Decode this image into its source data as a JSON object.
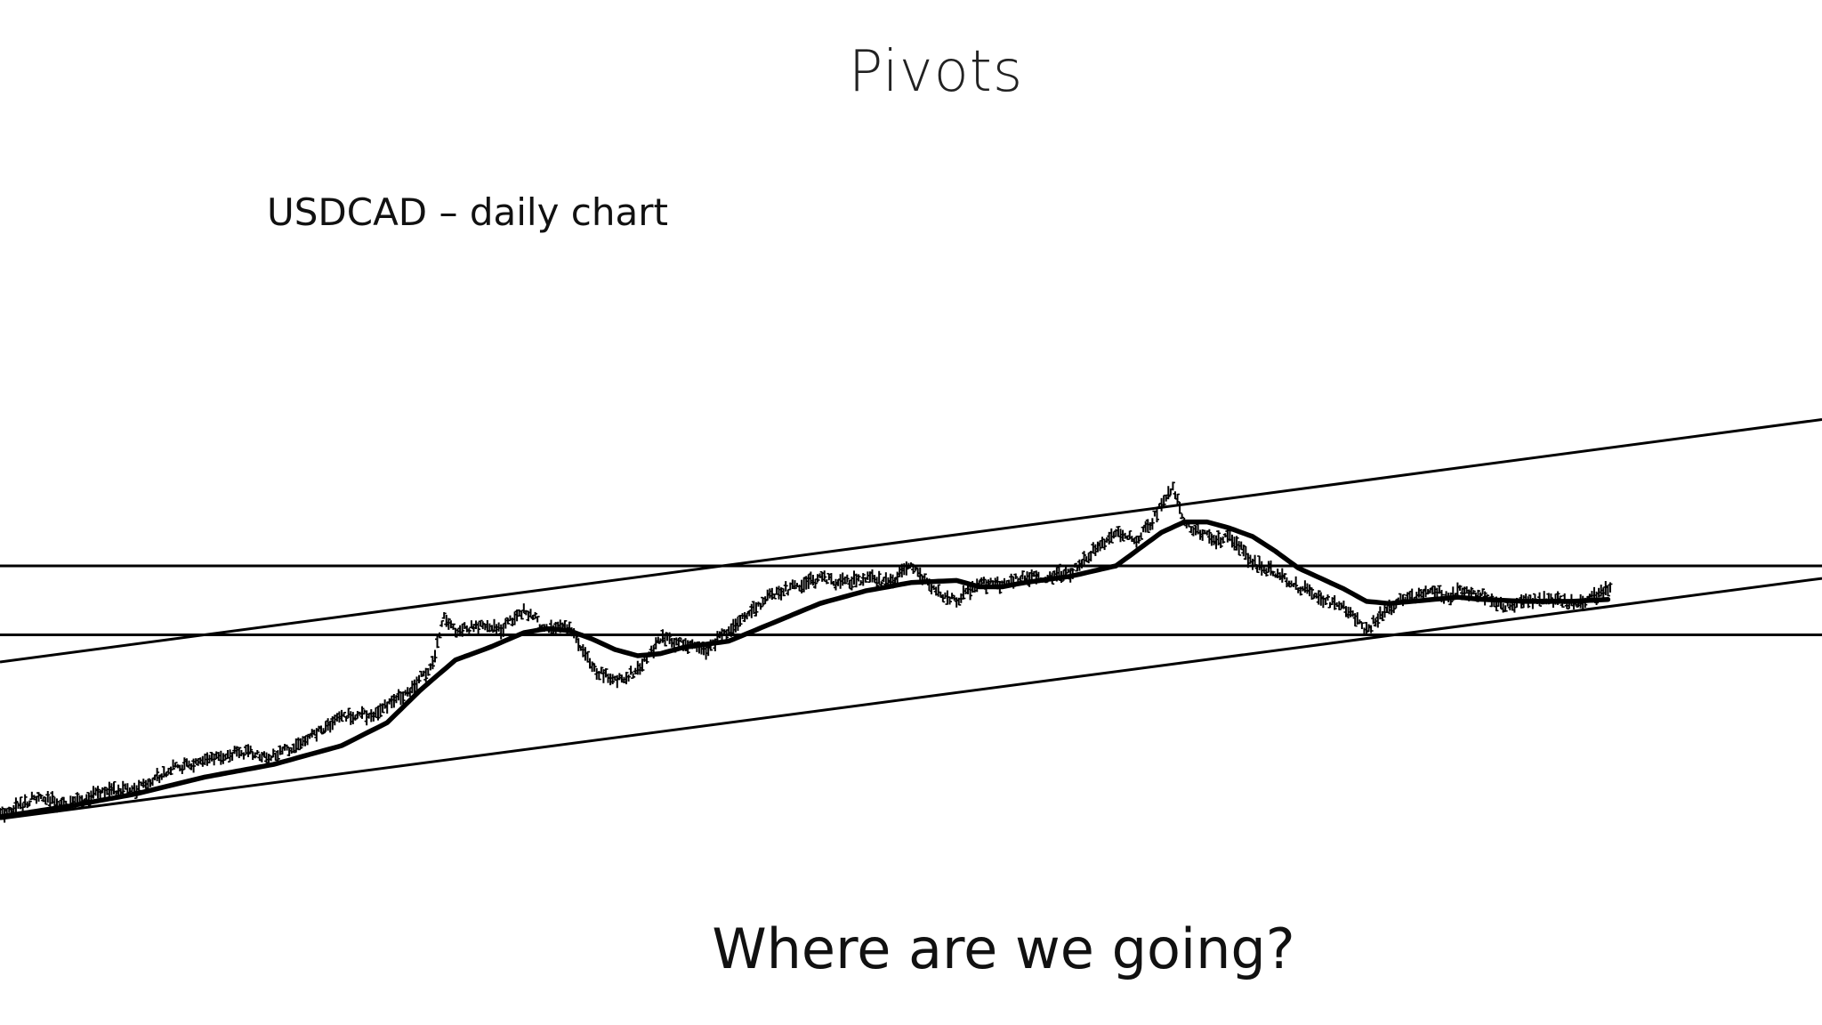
{
  "slide": {
    "title": "Pivots",
    "caption": "USDCAD – daily chart",
    "question": "Where are we going?"
  },
  "chart_data": {
    "type": "line",
    "title": "USDCAD – daily chart",
    "xlabel": "",
    "ylabel": "",
    "grid": false,
    "legend": "none",
    "axes_visible": false,
    "x_unit": "trading-day index",
    "y_unit": "price (unlabeled)",
    "xlim": [
      0,
      1600
    ],
    "ylim": [
      0,
      100
    ],
    "series": [
      {
        "style": "ohlc-bars",
        "color": "#000000",
        "x": [
          0,
          30,
          60,
          90,
          120,
          150,
          180,
          210,
          240,
          270,
          300,
          330,
          360,
          380,
          390,
          400,
          420,
          440,
          460,
          480,
          500,
          520,
          540,
          560,
          580,
          600,
          620,
          640,
          660,
          680,
          700,
          720,
          740,
          760,
          780,
          800,
          820,
          840,
          860,
          880,
          900,
          920,
          940,
          960,
          980,
          1000,
          1010,
          1020,
          1030,
          1040,
          1050,
          1060,
          1070,
          1080,
          1090,
          1100,
          1120,
          1140,
          1160,
          1180,
          1200,
          1220,
          1240,
          1250,
          1260,
          1270,
          1280,
          1300,
          1320,
          1340,
          1360,
          1380,
          1400,
          1415
        ],
        "y": [
          2.0,
          6.0,
          4.5,
          7.5,
          8.0,
          13.0,
          14.5,
          17.0,
          16.0,
          20.0,
          25.5,
          26.0,
          32.0,
          38.0,
          50.0,
          46.0,
          47.0,
          46.5,
          51.0,
          46.5,
          47.0,
          37.0,
          34.0,
          36.5,
          44.0,
          43.0,
          41.5,
          46.0,
          51.0,
          55.0,
          56.5,
          58.5,
          57.5,
          58.5,
          57.5,
          61.5,
          55.5,
          53.0,
          57.5,
          57.0,
          59.0,
          58.5,
          60.0,
          65.0,
          69.0,
          68.0,
          71.5,
          76.0,
          81.0,
          72.0,
          70.0,
          69.0,
          67.5,
          68.5,
          66.0,
          62.0,
          60.0,
          56.5,
          54.0,
          51.5,
          46.0,
          52.0,
          54.0,
          54.5,
          56.0,
          53.5,
          55.5,
          55.0,
          51.5,
          53.0,
          53.5,
          52.5,
          54.0,
          56.0
        ]
      },
      {
        "style": "moving-average",
        "color": "#000000",
        "x": [
          0,
          60,
          120,
          180,
          240,
          300,
          340,
          370,
          400,
          430,
          460,
          480,
          500,
          520,
          540,
          560,
          580,
          600,
          640,
          680,
          720,
          760,
          800,
          840,
          860,
          880,
          900,
          940,
          980,
          1000,
          1020,
          1040,
          1060,
          1080,
          1100,
          1120,
          1140,
          1160,
          1180,
          1200,
          1220,
          1240,
          1260,
          1280,
          1300,
          1340,
          1380,
          1415
        ],
        "y": [
          1.5,
          4.0,
          7.0,
          11.0,
          14.0,
          18.5,
          24.0,
          32.0,
          39.0,
          42.0,
          45.5,
          46.5,
          46.0,
          44.0,
          41.5,
          40.0,
          40.5,
          42.0,
          43.5,
          48.0,
          52.5,
          55.5,
          57.5,
          58.0,
          56.5,
          56.5,
          57.5,
          59.0,
          61.5,
          65.5,
          69.5,
          72.0,
          72.0,
          70.5,
          68.5,
          65.0,
          61.0,
          58.5,
          56.0,
          53.0,
          52.5,
          53.0,
          53.5,
          54.0,
          53.5,
          53.0,
          53.0,
          53.5
        ]
      }
    ],
    "annotations": [
      {
        "kind": "horizontal-line",
        "label": "",
        "y": 61.5
      },
      {
        "kind": "horizontal-line",
        "label": "",
        "y": 45.0
      },
      {
        "kind": "trend-line",
        "label": "",
        "points": [
          [
            0,
            38.5
          ],
          [
            1600,
            96.5
          ]
        ]
      },
      {
        "kind": "trend-line",
        "label": "",
        "points": [
          [
            0,
            1.0
          ],
          [
            1600,
            58.5
          ]
        ]
      }
    ]
  }
}
